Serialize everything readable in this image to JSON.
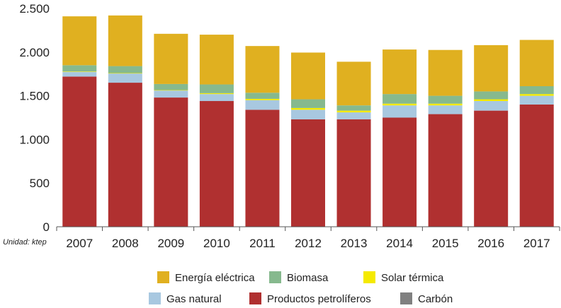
{
  "chart_data": {
    "type": "bar",
    "stacked": true,
    "categories": [
      "2007",
      "2008",
      "2009",
      "2010",
      "2011",
      "2012",
      "2013",
      "2014",
      "2015",
      "2016",
      "2017"
    ],
    "series": [
      {
        "name": "Carbón",
        "color": "#808080",
        "values": [
          0,
          0,
          0,
          0,
          0,
          0,
          0,
          0,
          0,
          0,
          0
        ]
      },
      {
        "name": "Productos petrolíferos",
        "color": "#b03030",
        "values": [
          1720,
          1650,
          1480,
          1440,
          1340,
          1230,
          1230,
          1250,
          1290,
          1330,
          1400
        ]
      },
      {
        "name": "Gas natural",
        "color": "#a8c8e0",
        "values": [
          55,
          105,
          80,
          80,
          110,
          110,
          80,
          140,
          100,
          110,
          100
        ]
      },
      {
        "name": "Solar térmica",
        "color": "#f5ea00",
        "values": [
          5,
          5,
          5,
          10,
          15,
          20,
          20,
          20,
          20,
          20,
          20
        ]
      },
      {
        "name": "Biomasa",
        "color": "#86b98e",
        "values": [
          70,
          80,
          70,
          100,
          70,
          100,
          60,
          110,
          90,
          90,
          90
        ]
      },
      {
        "name": "Energía eléctrica",
        "color": "#e0b020",
        "values": [
          560,
          580,
          575,
          570,
          535,
          535,
          500,
          510,
          525,
          530,
          530
        ]
      }
    ],
    "title": "",
    "xlabel": "",
    "ylabel": "",
    "unit_note": "Unidad: ktep",
    "ylim": [
      0,
      2500
    ],
    "yticks": [
      0,
      500,
      1000,
      1500,
      2000,
      2500
    ],
    "ytick_labels": [
      "0",
      "500",
      "1.000",
      "1.500",
      "2.000",
      "2.500"
    ],
    "grid": false,
    "legend_position": "bottom",
    "legend": [
      {
        "label": "Energía eléctrica",
        "color": "#e0b020"
      },
      {
        "label": "Biomasa",
        "color": "#86b98e"
      },
      {
        "label": "Solar térmica",
        "color": "#f5ea00"
      },
      {
        "label": "Gas natural",
        "color": "#a8c8e0"
      },
      {
        "label": "Productos petrolíferos",
        "color": "#b03030"
      },
      {
        "label": "Carbón",
        "color": "#808080"
      }
    ]
  }
}
